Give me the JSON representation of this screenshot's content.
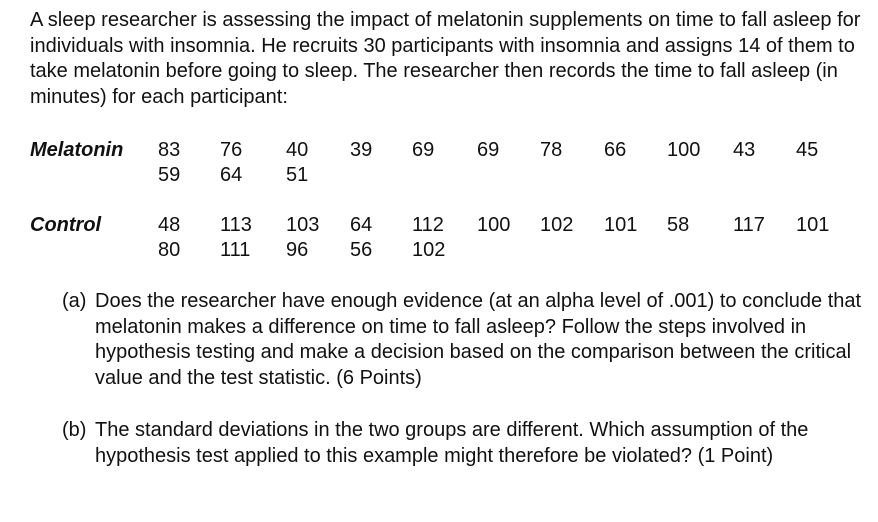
{
  "intro": "A sleep researcher is assessing the impact of melatonin supplements on time to fall asleep for individuals with insomnia. He recruits 30 participants with insomnia and assigns 14 of them to take melatonin before going to sleep. The researcher then records the time to fall asleep (in minutes) for each participant:",
  "groups": [
    {
      "label": "Melatonin",
      "rows": [
        [
          "83",
          "76",
          "40",
          "39",
          "69",
          "69",
          "78",
          "66",
          "100",
          "43",
          "45"
        ],
        [
          "59",
          "64",
          "51"
        ]
      ]
    },
    {
      "label": "Control",
      "rows": [
        [
          "48",
          "113",
          "103",
          "64",
          "112",
          "100",
          "102",
          "101",
          "58",
          "117",
          "101"
        ],
        [
          "80",
          "111",
          "96",
          "56",
          "102"
        ]
      ]
    }
  ],
  "questions": [
    {
      "label": "(a)",
      "text": "Does the researcher have enough evidence (at an alpha level of .001) to conclude that melatonin makes a difference on time to fall asleep? Follow the steps involved in hypothesis testing and make a decision based on the comparison between the critical value and the test statistic. (6 Points)"
    },
    {
      "label": "(b)",
      "text": "The standard deviations in the two groups are different. Which assumption of the hypothesis test applied to this example might therefore be violated? (1 Point)"
    }
  ]
}
